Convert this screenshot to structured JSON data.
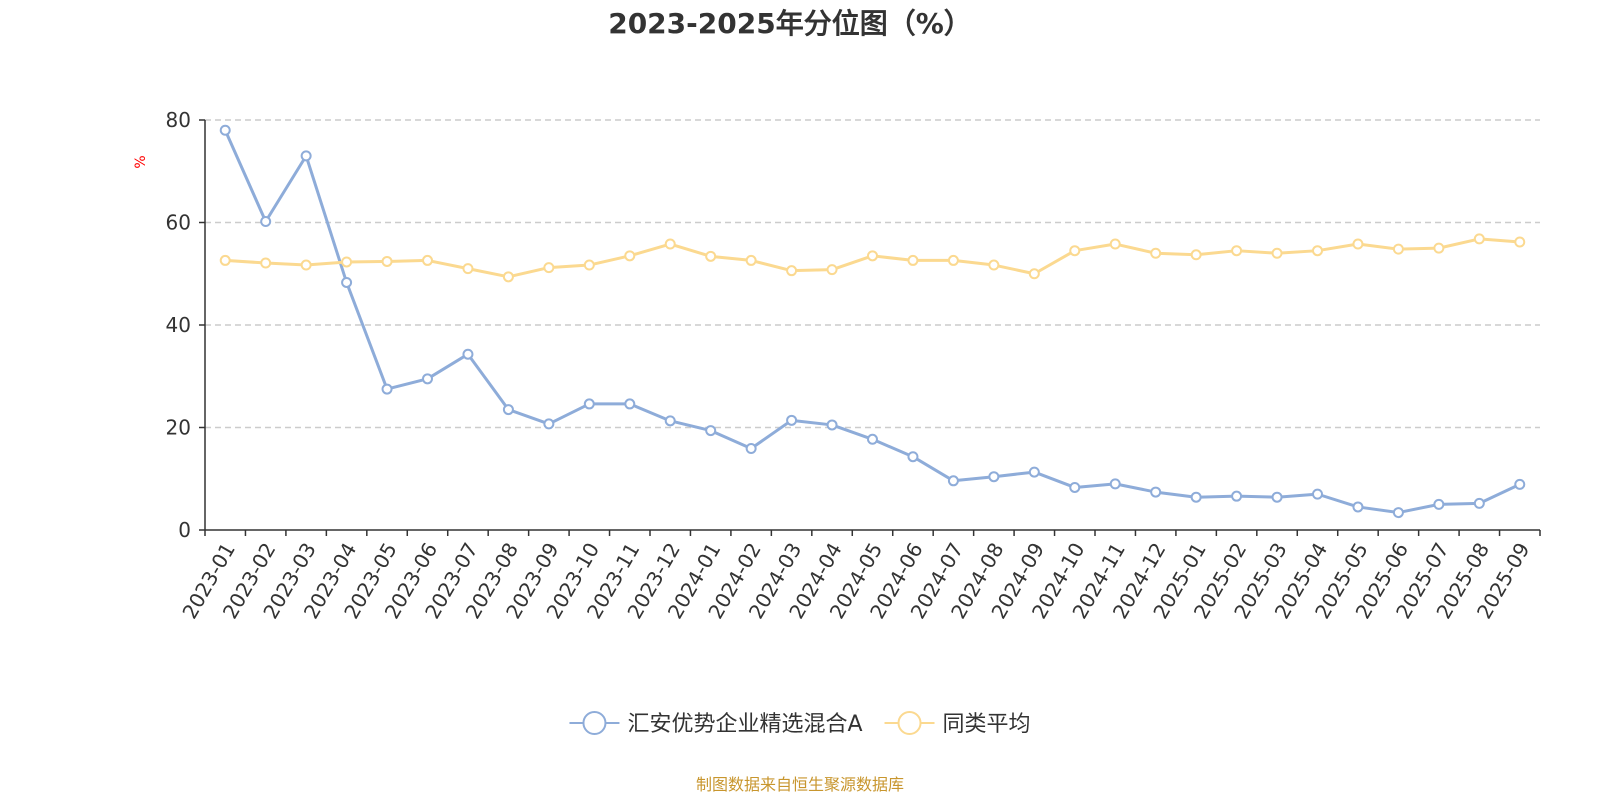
{
  "chart_data": {
    "type": "line",
    "title": "2023-2025年分位图（%）",
    "ylabel": "%",
    "xlabel": "",
    "ylim": [
      0,
      80
    ],
    "yticks": [
      0,
      20,
      40,
      60,
      80
    ],
    "grid": true,
    "legend_position": "bottom-center",
    "categories": [
      "2023-01",
      "2023-02",
      "2023-03",
      "2023-04",
      "2023-05",
      "2023-06",
      "2023-07",
      "2023-08",
      "2023-09",
      "2023-10",
      "2023-11",
      "2023-12",
      "2024-01",
      "2024-02",
      "2024-03",
      "2024-04",
      "2024-05",
      "2024-06",
      "2024-07",
      "2024-08",
      "2024-09",
      "2024-10",
      "2024-11",
      "2024-12",
      "2025-01",
      "2025-02",
      "2025-03",
      "2025-04",
      "2025-05",
      "2025-06",
      "2025-07",
      "2025-08",
      "2025-09"
    ],
    "series": [
      {
        "name": "汇安优势企业精选混合A",
        "color": "#8eacd9",
        "values": [
          78.0,
          60.2,
          73.0,
          48.3,
          27.5,
          29.5,
          34.3,
          23.5,
          20.7,
          24.6,
          24.6,
          21.3,
          19.4,
          15.9,
          21.4,
          20.5,
          17.7,
          14.3,
          9.6,
          10.4,
          11.3,
          8.3,
          9.0,
          7.4,
          6.4,
          6.6,
          6.4,
          7.0,
          4.5,
          3.4,
          5.0,
          5.2,
          8.9
        ]
      },
      {
        "name": "同类平均",
        "color": "#fbd990",
        "values": [
          52.6,
          52.1,
          51.7,
          52.3,
          52.4,
          52.6,
          51.0,
          49.4,
          51.2,
          51.7,
          53.5,
          55.8,
          53.4,
          52.6,
          50.6,
          50.8,
          53.5,
          52.6,
          52.6,
          51.7,
          50.0,
          54.5,
          55.8,
          54.0,
          53.7,
          54.5,
          54.0,
          54.5,
          55.8,
          54.8,
          55.0,
          56.8,
          56.2
        ]
      }
    ],
    "source": "制图数据来自恒生聚源数据库"
  }
}
